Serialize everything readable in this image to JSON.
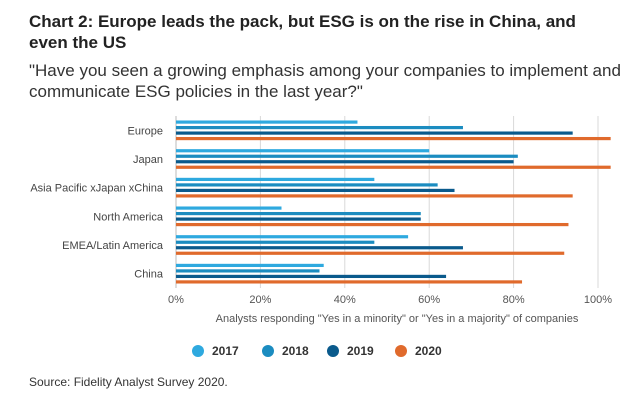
{
  "title": "Chart 2: Europe leads the pack, but ESG is on the rise in China, and even the US",
  "subtitle": "\"Have you seen a growing emphasis among your companies to implement and communicate ESG policies in the last year?\"",
  "source": "Source: Fidelity Analyst Survey 2020.",
  "chart_data": {
    "type": "bar",
    "orientation": "horizontal",
    "categories": [
      "Europe",
      "Japan",
      "Asia Pacific xJapan xChina",
      "North America",
      "EMEA/Latin America",
      "China"
    ],
    "series": [
      {
        "name": "2017",
        "color": "#2ea9df",
        "values": [
          43,
          60,
          47,
          25,
          55,
          35
        ]
      },
      {
        "name": "2018",
        "color": "#1b8cc0",
        "values": [
          68,
          81,
          62,
          58,
          47,
          34
        ]
      },
      {
        "name": "2019",
        "color": "#0a5a8c",
        "values": [
          94,
          80,
          66,
          58,
          68,
          64
        ]
      },
      {
        "name": "2020",
        "color": "#e06a2c",
        "values": [
          103,
          103,
          94,
          93,
          92,
          82
        ]
      }
    ],
    "xlabel": "Analysts responding \"Yes in a minority\" or \"Yes in a majority\" of companies",
    "xticks": [
      "0%",
      "20%",
      "40%",
      "60%",
      "80%",
      "100%"
    ],
    "xlim": [
      0,
      100
    ],
    "grid": true,
    "legend": "bottom"
  }
}
